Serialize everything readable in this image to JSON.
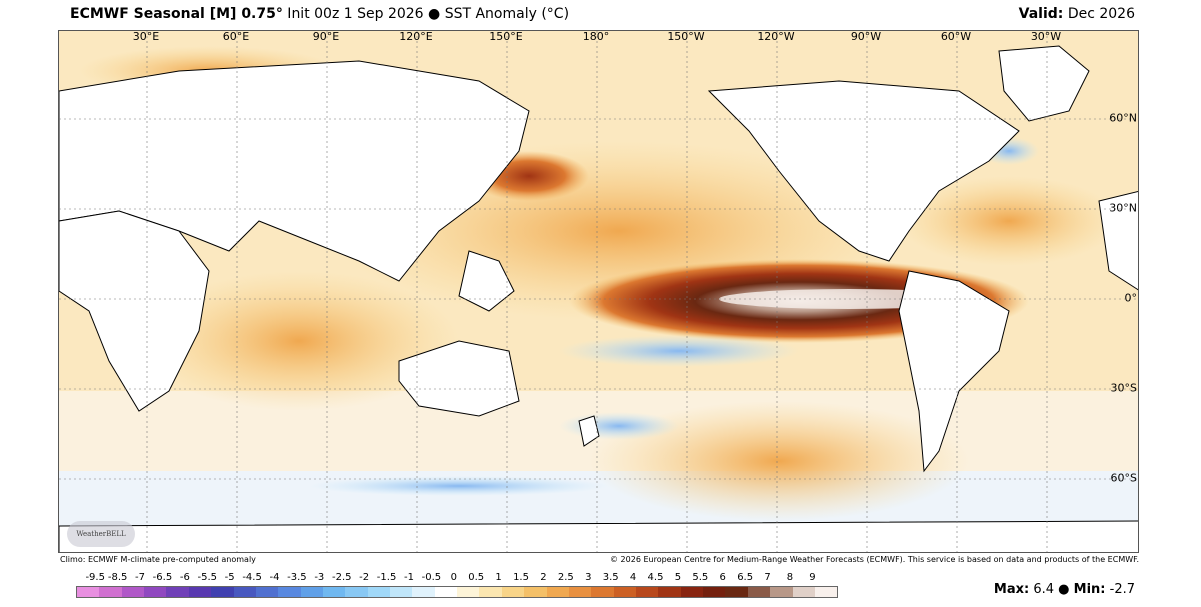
{
  "header": {
    "model": "ECMWF Seasonal [M] 0.75°",
    "init": " Init 00z 1 Sep 2026 ● SST Anomaly (°C)",
    "valid_label": "Valid:",
    "valid_value": " Dec 2026"
  },
  "lon_labels": [
    "30°E",
    "60°E",
    "90°E",
    "120°E",
    "150°E",
    "180°",
    "150°W",
    "120°W",
    "90°W",
    "60°W",
    "30°W"
  ],
  "lat_labels": [
    "60°N",
    "30°N",
    "0°",
    "30°S",
    "60°S"
  ],
  "footer": {
    "climo": "Climo: ECMWF M-climate pre-computed anomaly",
    "copyright": "© 2026 European Centre for Medium-Range Weather Forecasts (ECMWF). This service is based on data and products of the ECMWF."
  },
  "logo_text": "WeatherBELL",
  "colorbar": {
    "labels": [
      "-9.5",
      "-8.5",
      "-7",
      "-6.5",
      "-6",
      "-5.5",
      "-5",
      "-4.5",
      "-4",
      "-3.5",
      "-3",
      "-2.5",
      "-2",
      "-1.5",
      "-1",
      "-0.5",
      "0",
      "0.5",
      "1",
      "1.5",
      "2",
      "2.5",
      "3",
      "3.5",
      "4",
      "4.5",
      "5",
      "5.5",
      "6",
      "6.5",
      "7",
      "8",
      "9"
    ],
    "colors": [
      "#e88fe0",
      "#d070d0",
      "#b058c8",
      "#9048c0",
      "#7040b8",
      "#5838b0",
      "#4040b0",
      "#4858c0",
      "#5070d0",
      "#5888e0",
      "#60a0e8",
      "#70b8f0",
      "#88c8f4",
      "#a0d8f8",
      "#c0e6fa",
      "#e0f2fc",
      "#ffffff",
      "#fdf4d8",
      "#fbe6b0",
      "#f8d488",
      "#f4c068",
      "#f0a850",
      "#e89040",
      "#dc7830",
      "#cc6024",
      "#b8481c",
      "#a03414",
      "#882410",
      "#74200e",
      "#6a2812",
      "#8a5a48",
      "#b89888",
      "#e0d0c8",
      "#f8f0ec"
    ]
  },
  "stats": {
    "max_label": "Max:",
    "max_value": " 6.4",
    "sep": " ● ",
    "min_label": "Min:",
    "min_value": " -2.7"
  }
}
